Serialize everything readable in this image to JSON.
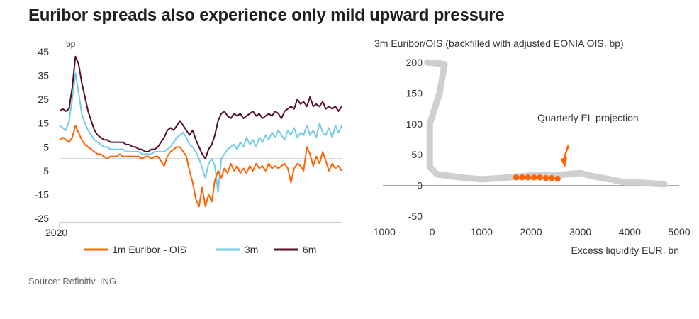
{
  "title": "Euribor spreads also experience only mild upward pressure",
  "source": "Source: Refinitiv, ING",
  "chart_data": [
    {
      "type": "line",
      "ylabel": "bp",
      "ylim": [
        -25,
        45
      ],
      "yticks": [
        "45",
        "35",
        "25",
        "15",
        "5",
        "-5",
        "-15",
        "-25"
      ],
      "xtick_label": "2020",
      "zero_line": 0,
      "series": [
        {
          "name": "1m Euribor - OIS",
          "color": "#ff6200",
          "values": [
            8,
            9,
            8,
            7,
            9,
            14,
            11,
            8,
            6,
            5,
            4,
            3,
            2,
            2,
            1,
            0,
            1,
            1,
            1,
            2,
            1,
            1,
            1,
            1,
            1,
            1,
            0,
            1,
            1,
            0,
            1,
            1,
            -1,
            -3,
            1,
            3,
            4,
            5,
            5,
            3,
            1,
            -5,
            -10,
            -17,
            -20,
            -12,
            -20,
            -15,
            -18,
            -9,
            -5,
            -8,
            -4,
            -6,
            -2,
            -5,
            -3,
            -6,
            -4,
            -6,
            -3,
            -5,
            -2,
            -4,
            -3,
            -5,
            -2,
            -4,
            -3,
            -4,
            -3,
            -2,
            -4,
            -10,
            -4,
            -2,
            -3,
            -5,
            5,
            2,
            -3,
            1,
            -2,
            3,
            -1,
            -5,
            -2,
            -4,
            -3,
            -5
          ]
        },
        {
          "name": "3m",
          "color": "#74cbea",
          "values": [
            14,
            13,
            12,
            16,
            25,
            36,
            28,
            19,
            15,
            12,
            10,
            8,
            7,
            6,
            5,
            5,
            4,
            4,
            4,
            4,
            4,
            3,
            3,
            3,
            3,
            3,
            2,
            2,
            2,
            2,
            3,
            3,
            3,
            3,
            4,
            5,
            7,
            9,
            10,
            11,
            9,
            6,
            5,
            3,
            0,
            -4,
            -8,
            -2,
            0,
            -3,
            -14,
            0,
            2,
            4,
            5,
            6,
            4,
            7,
            5,
            9,
            6,
            8,
            5,
            9,
            7,
            10,
            8,
            11,
            9,
            12,
            10,
            8,
            12,
            10,
            13,
            9,
            11,
            10,
            14,
            10,
            12,
            9,
            15,
            11,
            10,
            13,
            9,
            14,
            11,
            14
          ]
        },
        {
          "name": "6m",
          "color": "#560d2c",
          "values": [
            20,
            21,
            20,
            21,
            30,
            43,
            40,
            32,
            26,
            20,
            16,
            12,
            10,
            9,
            8,
            8,
            7,
            7,
            7,
            7,
            7,
            6,
            6,
            5,
            5,
            4,
            4,
            3,
            3,
            4,
            4,
            5,
            7,
            9,
            12,
            13,
            12,
            14,
            16,
            14,
            12,
            10,
            12,
            8,
            5,
            2,
            0,
            4,
            6,
            10,
            16,
            19,
            20,
            18,
            17,
            19,
            18,
            19,
            17,
            18,
            19,
            20,
            18,
            19,
            17,
            18,
            19,
            18,
            20,
            19,
            17,
            20,
            21,
            22,
            21,
            25,
            23,
            24,
            22,
            26,
            22,
            23,
            22,
            24,
            21,
            22,
            21,
            22,
            20,
            22
          ]
        }
      ]
    },
    {
      "type": "scatter",
      "title": "3m Euribor/OIS (backfilled with adjusted EONIA OIS, bp)",
      "xlabel": "Excess liquidity EUR, bn",
      "xlim": [
        -1000,
        5000
      ],
      "ylim": [
        -50,
        200
      ],
      "xticks": [
        "-1000",
        "0",
        "1000",
        "2000",
        "3000",
        "4000",
        "5000"
      ],
      "yticks": [
        "200",
        "150",
        "100",
        "50",
        "0",
        "-50"
      ],
      "annotation": "Quarterly EL projection",
      "historical_color": "#cccccc",
      "projection_color": "#ff6200",
      "historical_path": [
        [
          -100,
          200
        ],
        [
          250,
          197
        ],
        [
          150,
          150
        ],
        [
          -50,
          100
        ],
        [
          -50,
          50
        ],
        [
          -50,
          30
        ],
        [
          100,
          18
        ],
        [
          400,
          15
        ],
        [
          700,
          12
        ],
        [
          1000,
          10
        ],
        [
          1400,
          12
        ],
        [
          1800,
          15
        ],
        [
          2100,
          17
        ],
        [
          2400,
          16
        ],
        [
          2700,
          18
        ],
        [
          3000,
          20
        ],
        [
          3300,
          14
        ],
        [
          3600,
          10
        ],
        [
          3900,
          5
        ],
        [
          4200,
          5
        ],
        [
          4500,
          3
        ],
        [
          4700,
          2
        ]
      ],
      "projection": {
        "x": [
          1700,
          1820,
          1940,
          2060,
          2180,
          2300,
          2420,
          2540
        ],
        "y": [
          13,
          13,
          13,
          13,
          13,
          12,
          12,
          11
        ]
      }
    }
  ]
}
